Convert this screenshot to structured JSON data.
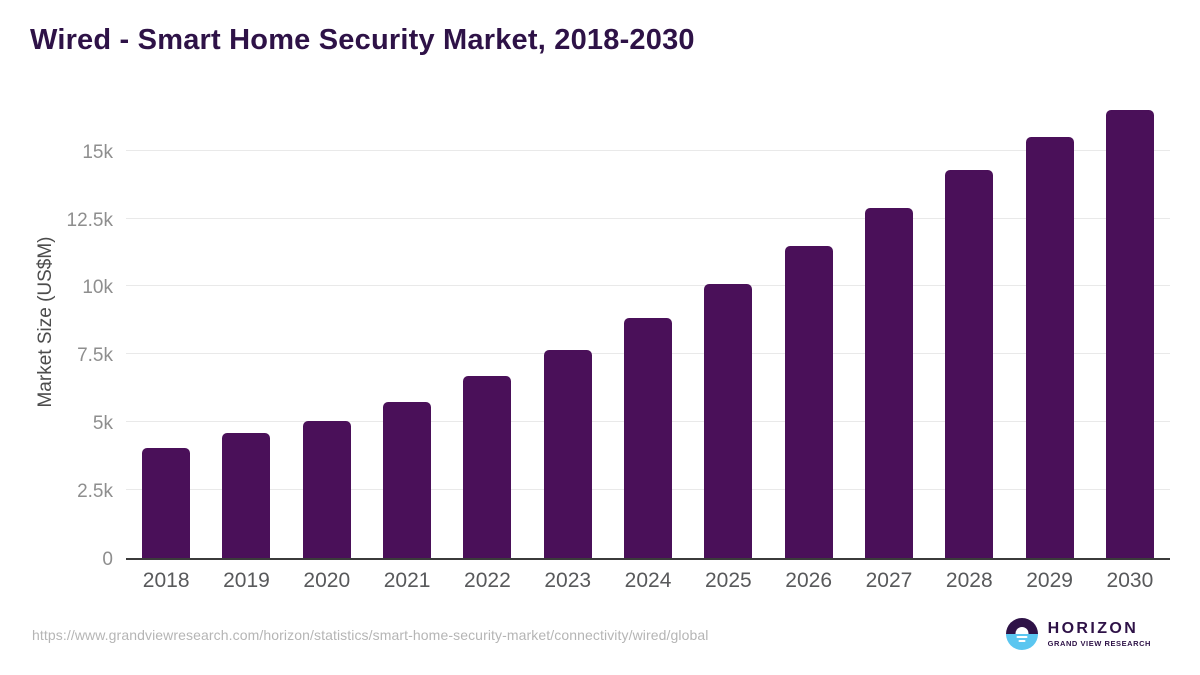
{
  "title": "Wired - Smart Home Security Market, 2018-2030",
  "footer": {
    "source_url": "https://www.grandviewresearch.com/horizon/statistics/smart-home-security-market/connectivity/wired/global",
    "logo": {
      "name": "HORIZON",
      "subtitle": "GRAND VIEW RESEARCH"
    }
  },
  "colors": {
    "bar": "#4a1059",
    "title_purple": "#2e1247",
    "logo_blue": "#5bc6f0",
    "gridline": "#e9e9e9",
    "axis_line": "#3b3b3b",
    "x_label": "#58595b",
    "y_tick_label": "#8e8e8e",
    "y_axis_title": "#4c4c4c",
    "url_text": "#b5b5b5",
    "background": "#ffffff"
  },
  "chart_data": {
    "type": "bar",
    "title": "Wired - Smart Home Security Market, 2018-2030",
    "categories": [
      "2018",
      "2019",
      "2020",
      "2021",
      "2022",
      "2023",
      "2024",
      "2025",
      "2026",
      "2027",
      "2028",
      "2029",
      "2030"
    ],
    "values": [
      4050,
      4600,
      5050,
      5750,
      6700,
      7650,
      8850,
      10100,
      11500,
      12900,
      14300,
      15500,
      16500
    ],
    "xlabel": "",
    "ylabel": "Market Size (US$M)",
    "ylim": [
      0,
      16940
    ],
    "yticks": [
      {
        "value": 0,
        "label": "0"
      },
      {
        "value": 2500,
        "label": "2.5k"
      },
      {
        "value": 5000,
        "label": "5k"
      },
      {
        "value": 7500,
        "label": "7.5k"
      },
      {
        "value": 10000,
        "label": "10k"
      },
      {
        "value": 12500,
        "label": "12.5k"
      },
      {
        "value": 15000,
        "label": "15k"
      }
    ],
    "grid": true,
    "legend": false,
    "bar_color": "#4a1059"
  }
}
